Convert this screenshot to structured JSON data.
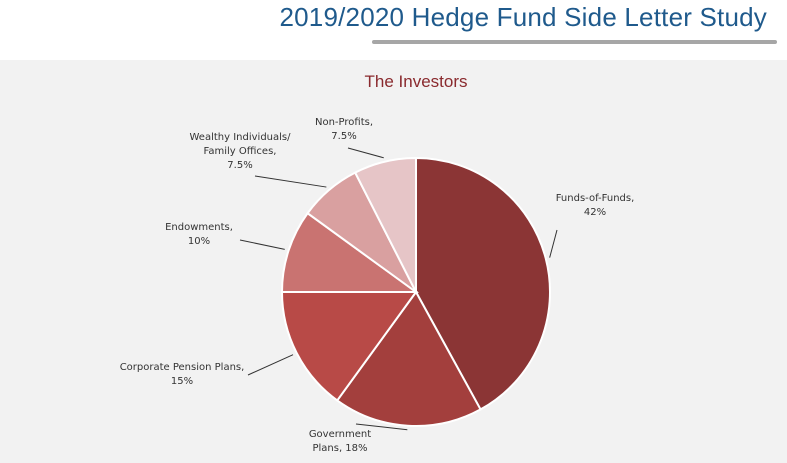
{
  "page": {
    "title": "2019/2020 Hedge Fund Side Letter Study"
  },
  "chart_data": {
    "type": "pie",
    "title": "The Investors",
    "slices": [
      {
        "label": "Funds-of-Funds",
        "value": 42,
        "display": "42%",
        "color": "#8b3535",
        "label_lines": [
          "Funds-of-Funds,",
          "42%"
        ]
      },
      {
        "label": "Government Plans",
        "value": 18,
        "display": "18%",
        "color": "#a33f3d",
        "label_lines": [
          "Government",
          "Plans, 18%"
        ]
      },
      {
        "label": "Corporate Pension Plans",
        "value": 15,
        "display": "15%",
        "color": "#b84a47",
        "label_lines": [
          "Corporate Pension Plans,",
          "15%"
        ]
      },
      {
        "label": "Endowments",
        "value": 10,
        "display": "10%",
        "color": "#c97371",
        "label_lines": [
          "Endowments,",
          "10%"
        ]
      },
      {
        "label": "Wealthy Individuals/ Family Offices",
        "value": 7.5,
        "display": "7.5%",
        "color": "#d9a0a0",
        "label_lines": [
          "Wealthy Individuals/",
          "Family Offices,",
          "7.5%"
        ]
      },
      {
        "label": "Non-Profits",
        "value": 7.5,
        "display": "7.5%",
        "color": "#e6c5c7",
        "label_lines": [
          "Non-Profits,",
          "7.5%"
        ]
      }
    ],
    "legend": "none"
  }
}
